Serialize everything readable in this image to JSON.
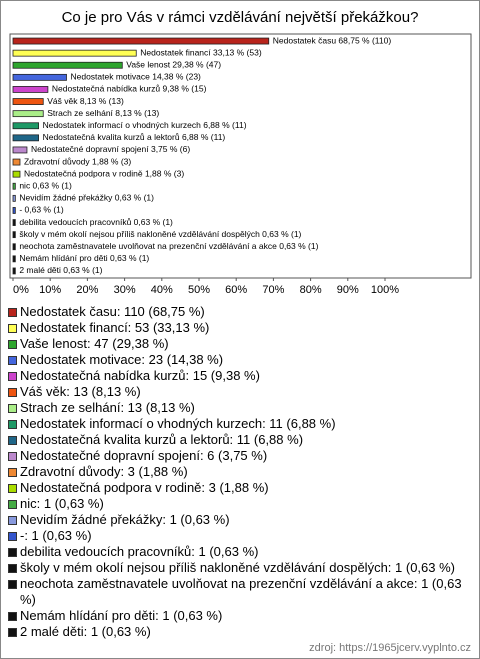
{
  "chart_data": {
    "type": "hbar",
    "title": "Co je pro Vás v rámci vzdělávání největší překážkou?",
    "categories": [
      "Nedostatek času",
      "Nedostatek financí",
      "Vaše lenost",
      "Nedostatek motivace",
      "Nedostatečná nabídka kurzů",
      "Váš věk",
      "Strach ze selhání",
      "Nedostatek informací o vhodných kurzech",
      "Nedostatečná kvalita kurzů a lektorů",
      "Nedostatečné dopravní spojení",
      "Zdravotní důvody",
      "Nedostatečná podpora v rodině",
      "nic",
      "Nevidím žádné překážky",
      "-",
      "debilita vedoucích pracovníků",
      "školy v mém okolí nejsou příliš nakloněné vzdělávání dospělých",
      "neochota zaměstnavatele uvolňovat na prezenční vzdělávání a akce",
      "Nemám hlídání pro děti",
      "2 malé děti"
    ],
    "values": [
      68.75,
      33.13,
      29.38,
      14.38,
      9.38,
      8.13,
      8.13,
      6.88,
      6.88,
      3.75,
      1.88,
      1.88,
      0.63,
      0.63,
      0.63,
      0.63,
      0.63,
      0.63,
      0.63,
      0.63
    ],
    "value_labels": [
      "Nedostatek času 68,75 % (110)",
      "Nedostatek financí 33,13 % (53)",
      "Vaše lenost 29,38 % (47)",
      "Nedostatek motivace 14,38 % (23)",
      "Nedostatečná nabídka kurzů 9,38 % (15)",
      "Váš věk 8,13 % (13)",
      "Strach ze selhání 8,13 % (13)",
      "Nedostatek informací o vhodných kurzech 6,88 % (11)",
      "Nedostatečná kvalita kurzů a lektorů 6,88 % (11)",
      "Nedostatečné dopravní spojení 3,75 % (6)",
      "Zdravotní důvody 1,88 % (3)",
      "Nedostatečná podpora v rodině 1,88 % (3)",
      "nic 0,63 % (1)",
      "Nevidím žádné překážky 0,63 % (1)",
      "- 0,63 % (1)",
      "debilita vedoucích pracovníků 0,63 % (1)",
      "školy v mém okolí nejsou příliš nakloněné vzdělávání dospělých 0,63 % (1)",
      "neochota zaměstnavatele uvolňovat na prezenční vzdělávání a akce 0,63 % (1)",
      "Nemám hlídání pro děti 0,63 % (1)",
      "2 malé děti 0,63 % (1)"
    ],
    "colors": [
      "#b8241c",
      "#ffff55",
      "#2ea52e",
      "#4466dd",
      "#cc44cc",
      "#ee5511",
      "#aaee88",
      "#1e9966",
      "#1f6688",
      "#bb88cc",
      "#ee8833",
      "#aadd00",
      "#44aa44",
      "#8899dd",
      "#3355cc",
      "#111111",
      "#111111",
      "#111111",
      "#111111",
      "#111111"
    ],
    "legend": [
      "Nedostatek času: 110 (68,75 %)",
      "Nedostatek financí: 53 (33,13 %)",
      "Vaše lenost: 47 (29,38 %)",
      "Nedostatek motivace: 23 (14,38 %)",
      "Nedostatečná nabídka kurzů: 15 (9,38 %)",
      "Váš věk: 13 (8,13 %)",
      "Strach ze selhání: 13 (8,13 %)",
      "Nedostatek informací o vhodných kurzech: 11 (6,88 %)",
      "Nedostatečná kvalita kurzů a lektorů: 11 (6,88 %)",
      "Nedostatečné dopravní spojení: 6 (3,75 %)",
      "Zdravotní důvody: 3 (1,88 %)",
      "Nedostatečná podpora v rodině: 3 (1,88 %)",
      "nic: 1 (0,63 %)",
      "Nevidím žádné překážky: 1 (0,63 %)",
      "-: 1 (0,63 %)",
      "debilita vedoucích pracovníků: 1 (0,63 %)",
      "školy v mém okolí nejsou příliš nakloněné vzdělávání dospělých: 1 (0,63 %)",
      "neochota zaměstnavatele uvolňovat na prezenční vzdělávání a akce: 1 (0,63 %)",
      "Nemám hlídání pro děti: 1 (0,63 %)",
      "2 malé děti: 1 (0,63 %)"
    ],
    "xlim": [
      0,
      100
    ],
    "xticks": [
      {
        "value": 0,
        "label": "0%"
      },
      {
        "value": 10,
        "label": "10%"
      },
      {
        "value": 20,
        "label": "20%"
      },
      {
        "value": 30,
        "label": "30%"
      },
      {
        "value": 40,
        "label": "40%"
      },
      {
        "value": 50,
        "label": "50%"
      },
      {
        "value": 60,
        "label": "60%"
      },
      {
        "value": 70,
        "label": "70%"
      },
      {
        "value": 80,
        "label": "80%"
      },
      {
        "value": 90,
        "label": "90%"
      },
      {
        "value": 100,
        "label": "100%"
      }
    ],
    "source": "zdroj: https://1965jcerv.vyplnto.cz"
  }
}
